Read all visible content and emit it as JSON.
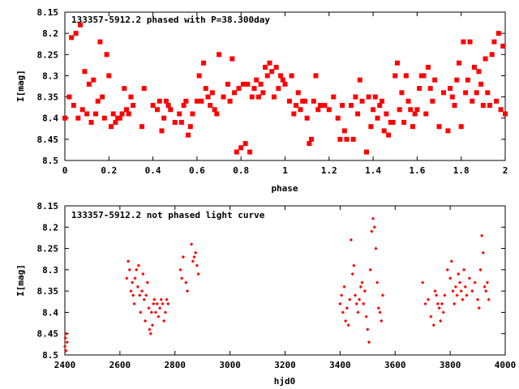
{
  "chart_data": [
    {
      "type": "scatter",
      "title": "133357-5912.2 phased with P=38.300day",
      "xlabel": "phase",
      "ylabel": "I[mag]",
      "xlim": [
        0,
        2
      ],
      "ylim": [
        8.5,
        8.15
      ],
      "y_inverted": true,
      "xticks": [
        "0",
        "0.2",
        "0.4",
        "0.6",
        "0.8",
        "1",
        "1.2",
        "1.4",
        "1.6",
        "1.8",
        "2"
      ],
      "yticks": [
        "8.15",
        "8.2",
        "8.25",
        "8.3",
        "8.35",
        "8.4",
        "8.45",
        "8.5"
      ],
      "grid": false,
      "marker_color": "#ff0000",
      "series": [
        {
          "x": [
            0.0,
            0.03,
            0.02,
            0.04,
            0.05,
            0.06,
            0.07,
            0.08,
            0.09,
            0.1,
            0.11,
            0.12,
            0.13,
            0.14,
            0.15,
            0.16,
            0.17,
            0.18,
            0.19,
            0.2,
            0.21,
            0.22,
            0.23,
            0.24,
            0.25,
            0.26,
            0.27,
            0.28,
            0.29,
            0.3,
            0.31,
            0.35,
            0.36,
            0.4,
            0.42,
            0.43,
            0.44,
            0.45,
            0.46,
            0.47,
            0.48,
            0.5,
            0.52,
            0.53,
            0.54,
            0.55,
            0.56,
            0.57,
            0.58,
            0.6,
            0.61,
            0.62,
            0.63,
            0.64,
            0.65,
            0.66,
            0.67,
            0.68,
            0.69,
            0.7,
            0.72,
            0.74,
            0.75,
            0.76,
            0.77,
            0.78,
            0.79,
            0.8,
            0.81,
            0.82,
            0.83,
            0.84,
            0.85,
            0.86,
            0.87,
            0.88,
            0.89,
            0.9,
            0.91,
            0.92,
            0.93,
            0.94,
            0.95,
            0.96,
            0.97,
            0.98,
            0.99,
            1.0,
            1.02,
            1.03,
            1.04,
            1.05,
            1.06,
            1.07,
            1.08,
            1.09,
            1.1,
            1.11,
            1.12,
            1.13,
            1.14,
            1.15,
            1.16,
            1.18,
            1.2,
            1.22,
            1.24,
            1.25,
            1.26,
            1.27,
            1.28,
            1.3,
            1.31,
            1.32,
            1.33,
            1.34,
            1.35,
            1.37,
            1.38,
            1.39,
            1.4,
            1.41,
            1.42,
            1.43,
            1.44,
            1.45,
            1.46,
            1.47,
            1.48,
            1.49,
            1.5,
            1.51,
            1.52,
            1.53,
            1.54,
            1.55,
            1.56,
            1.57,
            1.58,
            1.59,
            1.6,
            1.61,
            1.62,
            1.63,
            1.64,
            1.65,
            1.66,
            1.67,
            1.68,
            1.7,
            1.72,
            1.74,
            1.75,
            1.76,
            1.77,
            1.78,
            1.79,
            1.8,
            1.81,
            1.82,
            1.83,
            1.84,
            1.85,
            1.86,
            1.87,
            1.88,
            1.89,
            1.9,
            1.91,
            1.92,
            1.93,
            1.94,
            1.95,
            1.96,
            1.97,
            1.98,
            1.99,
            2.0
          ],
          "y": [
            8.4,
            8.21,
            8.35,
            8.37,
            8.2,
            8.4,
            8.18,
            8.38,
            8.29,
            8.39,
            8.32,
            8.41,
            8.31,
            8.39,
            8.36,
            8.22,
            8.35,
            8.4,
            8.25,
            8.3,
            8.42,
            8.39,
            8.41,
            8.4,
            8.4,
            8.39,
            8.33,
            8.38,
            8.39,
            8.35,
            8.37,
            8.42,
            8.33,
            8.37,
            8.38,
            8.36,
            8.43,
            8.4,
            8.36,
            8.37,
            8.38,
            8.41,
            8.39,
            8.41,
            8.37,
            8.36,
            8.44,
            8.42,
            8.39,
            8.36,
            8.3,
            8.36,
            8.27,
            8.33,
            8.35,
            8.37,
            8.34,
            8.38,
            8.39,
            8.25,
            8.35,
            8.32,
            8.36,
            8.26,
            8.34,
            8.48,
            8.33,
            8.47,
            8.32,
            8.46,
            8.32,
            8.48,
            8.35,
            8.33,
            8.31,
            8.35,
            8.32,
            8.34,
            8.28,
            8.3,
            8.27,
            8.29,
            8.35,
            8.28,
            8.33,
            8.3,
            8.31,
            8.32,
            8.36,
            8.3,
            8.39,
            8.37,
            8.34,
            8.38,
            8.36,
            8.36,
            8.4,
            8.46,
            8.45,
            8.36,
            8.3,
            8.38,
            8.37,
            8.37,
            8.38,
            8.35,
            8.4,
            8.45,
            8.37,
            8.43,
            8.45,
            8.37,
            8.45,
            8.35,
            8.39,
            8.31,
            8.36,
            8.48,
            8.35,
            8.42,
            8.38,
            8.35,
            8.4,
            8.37,
            8.36,
            8.43,
            8.39,
            8.44,
            8.41,
            8.41,
            8.3,
            8.27,
            8.38,
            8.34,
            8.41,
            8.3,
            8.36,
            8.38,
            8.42,
            8.39,
            8.38,
            8.33,
            8.3,
            8.3,
            8.39,
            8.28,
            8.33,
            8.36,
            8.31,
            8.42,
            8.34,
            8.43,
            8.33,
            8.35,
            8.37,
            8.31,
            8.27,
            8.42,
            8.22,
            8.34,
            8.31,
            8.22,
            8.36,
            8.28,
            8.34,
            8.29,
            8.32,
            8.37,
            8.26,
            8.34,
            8.37,
            8.25,
            8.22,
            8.36,
            8.2,
            8.38,
            8.23,
            8.39
          ]
        }
      ]
    },
    {
      "type": "scatter",
      "title": "133357-5912.2 not phased light curve",
      "xlabel": "hjd0",
      "ylabel": "I[mag]",
      "xlim": [
        2400,
        4000
      ],
      "ylim": [
        8.5,
        8.15
      ],
      "y_inverted": true,
      "xticks": [
        "2400",
        "2600",
        "2800",
        "3000",
        "3200",
        "3400",
        "3600",
        "3800",
        "4000"
      ],
      "yticks": [
        "8.15",
        "8.2",
        "8.25",
        "8.3",
        "8.35",
        "8.4",
        "8.45",
        "8.5"
      ],
      "grid": false,
      "marker_color": "#ff0000",
      "series": [
        {
          "x": [
            2400,
            2402,
            2404,
            2406,
            2408,
            2625,
            2630,
            2635,
            2640,
            2645,
            2648,
            2652,
            2655,
            2660,
            2665,
            2668,
            2672,
            2675,
            2680,
            2684,
            2688,
            2692,
            2695,
            2700,
            2705,
            2708,
            2712,
            2715,
            2718,
            2722,
            2725,
            2730,
            2735,
            2740,
            2745,
            2750,
            2755,
            2760,
            2765,
            2770,
            2775,
            2820,
            2825,
            2830,
            2840,
            2845,
            2860,
            2865,
            2870,
            2875,
            2880,
            2885,
            3400,
            3405,
            3410,
            3415,
            3420,
            3425,
            3430,
            3435,
            3440,
            3445,
            3450,
            3455,
            3460,
            3465,
            3470,
            3475,
            3480,
            3485,
            3490,
            3495,
            3500,
            3505,
            3510,
            3515,
            3520,
            3525,
            3530,
            3535,
            3540,
            3545,
            3550,
            3555,
            3700,
            3710,
            3720,
            3730,
            3740,
            3745,
            3750,
            3755,
            3760,
            3765,
            3770,
            3775,
            3780,
            3790,
            3800,
            3805,
            3810,
            3815,
            3820,
            3825,
            3830,
            3835,
            3840,
            3845,
            3850,
            3855,
            3860,
            3870,
            3880,
            3890,
            3900,
            3905,
            3910,
            3915,
            3920,
            3925,
            3930,
            3935,
            3940
          ],
          "y": [
            8.48,
            8.46,
            8.49,
            8.45,
            8.47,
            8.32,
            8.28,
            8.3,
            8.35,
            8.33,
            8.36,
            8.38,
            8.32,
            8.3,
            8.34,
            8.29,
            8.36,
            8.4,
            8.35,
            8.31,
            8.37,
            8.42,
            8.36,
            8.33,
            8.39,
            8.44,
            8.45,
            8.4,
            8.43,
            8.38,
            8.37,
            8.4,
            8.38,
            8.41,
            8.39,
            8.37,
            8.38,
            8.42,
            8.4,
            8.37,
            8.38,
            8.3,
            8.32,
            8.27,
            8.33,
            8.35,
            8.24,
            8.28,
            8.27,
            8.26,
            8.29,
            8.31,
            8.38,
            8.36,
            8.4,
            8.34,
            8.42,
            8.39,
            8.43,
            8.37,
            8.23,
            8.31,
            8.29,
            8.36,
            8.38,
            8.4,
            8.37,
            8.34,
            8.33,
            8.38,
            8.35,
            8.41,
            8.44,
            8.47,
            8.3,
            8.21,
            8.18,
            8.2,
            8.25,
            8.33,
            8.39,
            8.4,
            8.42,
            8.36,
            8.33,
            8.38,
            8.37,
            8.41,
            8.43,
            8.35,
            8.36,
            8.38,
            8.39,
            8.42,
            8.38,
            8.4,
            8.36,
            8.3,
            8.32,
            8.28,
            8.35,
            8.38,
            8.34,
            8.36,
            8.31,
            8.33,
            8.35,
            8.37,
            8.3,
            8.34,
            8.36,
            8.32,
            8.35,
            8.33,
            8.37,
            8.39,
            8.3,
            8.22,
            8.26,
            8.34,
            8.35,
            8.33,
            8.37
          ]
        }
      ]
    }
  ]
}
